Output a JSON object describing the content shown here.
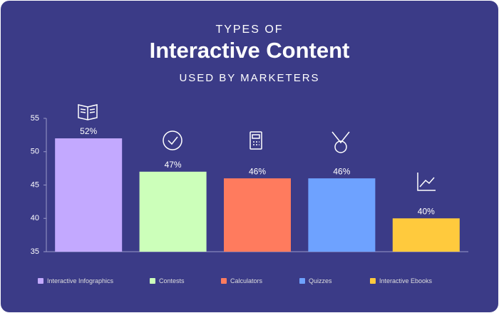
{
  "chart_data": {
    "type": "bar",
    "title_top": "TYPES OF",
    "title": "Interactive Content",
    "subtitle": "USED BY MARKETERS",
    "categories": [
      "Interactive Infographics",
      "Contests",
      "Calculators",
      "Quizzes",
      "Interactive Ebooks"
    ],
    "values": [
      52,
      47,
      46,
      46,
      40
    ],
    "value_labels": [
      "52%",
      "47%",
      "46%",
      "46%",
      "40%"
    ],
    "colors": [
      "#c3a9ff",
      "#ccffba",
      "#ff7b5e",
      "#6ea2ff",
      "#ffca3d"
    ],
    "ylim": [
      35,
      55
    ],
    "yticks": [
      35,
      40,
      45,
      50,
      55
    ],
    "grid": false,
    "legend": "bottom"
  }
}
